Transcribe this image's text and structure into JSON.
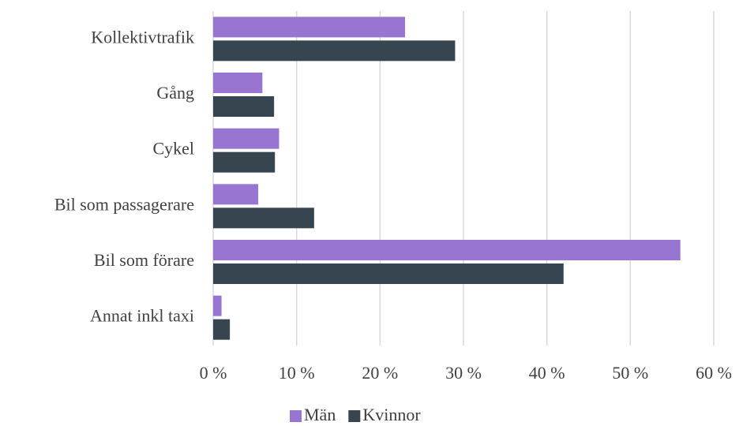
{
  "chart_data": {
    "type": "barh",
    "categories": [
      "Kollektivtrafik",
      "Gång",
      "Cykel",
      "Bil som passagerare",
      "Bil som förare",
      "Annat inkl taxi"
    ],
    "series": [
      {
        "name": "Män",
        "color": "#9775d0",
        "values": [
          23.0,
          5.9,
          7.9,
          5.4,
          56.0,
          1.0
        ]
      },
      {
        "name": "Kvinnor",
        "color": "#36454f",
        "values": [
          29.0,
          7.3,
          7.4,
          12.1,
          42.0,
          2.0
        ]
      }
    ],
    "xlim": [
      0,
      60
    ],
    "xticks": [
      {
        "value": 0,
        "label": "0 %"
      },
      {
        "value": 10,
        "label": "10 %"
      },
      {
        "value": 20,
        "label": "20 %"
      },
      {
        "value": 30,
        "label": "30 %"
      },
      {
        "value": 40,
        "label": "40 %"
      },
      {
        "value": 50,
        "label": "50 %"
      },
      {
        "value": 60,
        "label": "60 %"
      }
    ],
    "grid": true,
    "legend": "bottom"
  }
}
